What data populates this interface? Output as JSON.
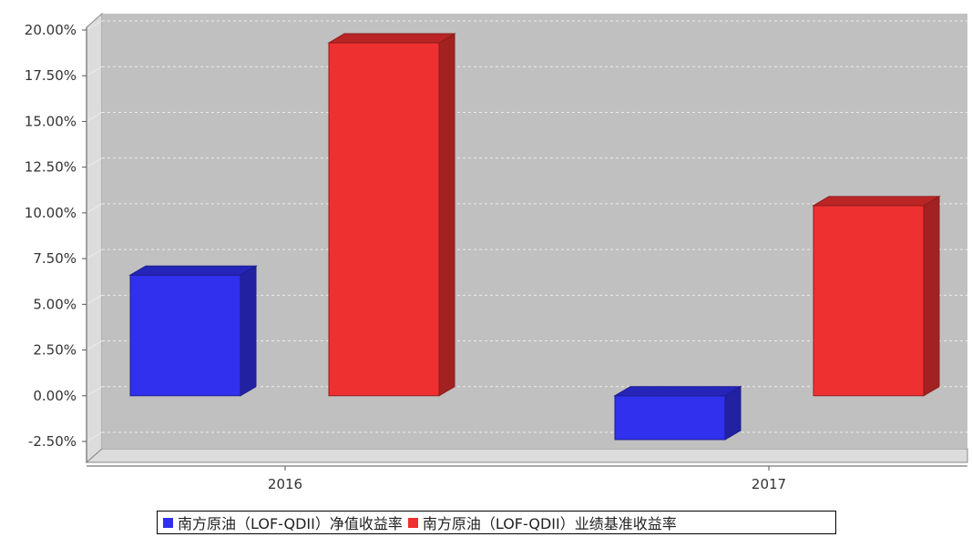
{
  "chart_data": {
    "type": "bar",
    "categories": [
      "2016",
      "2017"
    ],
    "series": [
      {
        "name": "南方原油（LOF-QDII）净值收益率",
        "values": [
          6.6,
          -2.4
        ],
        "color": "#3030ee"
      },
      {
        "name": "南方原油（LOF-QDII）业绩基准收益率",
        "values": [
          19.3,
          10.4
        ],
        "color": "#ee3030"
      }
    ],
    "y_ticks": [
      "20.00%",
      "17.50%",
      "15.00%",
      "12.50%",
      "10.00%",
      "7.50%",
      "5.00%",
      "2.50%",
      "0.00%",
      "-2.50%"
    ],
    "ylim": [
      -2.5,
      20
    ],
    "grid": true,
    "legend_position": "bottom",
    "plot_background": "#c0c0c0"
  }
}
